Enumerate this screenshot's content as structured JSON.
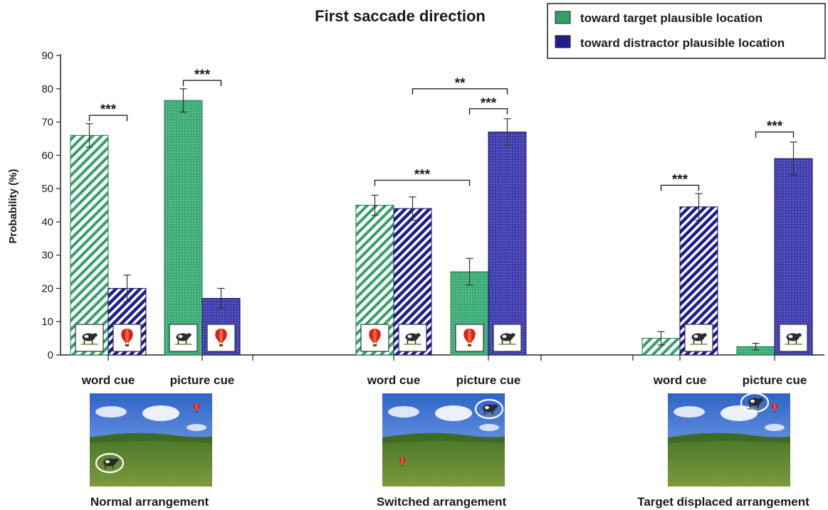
{
  "chart_data": {
    "type": "bar",
    "title": "First saccade direction",
    "ylabel": "Probability (%)",
    "xlabel": "",
    "ylim": [
      0,
      90
    ],
    "yticks": [
      0,
      10,
      20,
      30,
      40,
      50,
      60,
      70,
      80,
      90
    ],
    "grid": false,
    "legend_position": "top-right",
    "series": [
      {
        "name": "toward target plausible location",
        "color": "#33a06a"
      },
      {
        "name": "toward distractor plausible location",
        "color": "#1f1e8c"
      }
    ],
    "groups": [
      {
        "arrangement": "Normal arrangement",
        "cues": [
          {
            "label": "word cue",
            "values": [
              66,
              20
            ],
            "errors": [
              3.5,
              4
            ],
            "pattern": "striped",
            "icons": [
              "cow-icon",
              "balloon-icon"
            ]
          },
          {
            "label": "picture cue",
            "values": [
              76.5,
              17
            ],
            "errors": [
              3.5,
              3
            ],
            "pattern": "dotted",
            "icons": [
              "cow-icon",
              "balloon-icon"
            ]
          }
        ]
      },
      {
        "arrangement": "Switched arrangement",
        "cues": [
          {
            "label": "word cue",
            "values": [
              45,
              44
            ],
            "errors": [
              3,
              3.5
            ],
            "pattern": "striped",
            "icons": [
              "balloon-icon",
              "cow-icon"
            ]
          },
          {
            "label": "picture cue",
            "values": [
              25,
              67
            ],
            "errors": [
              4,
              4
            ],
            "pattern": "dotted",
            "icons": [
              "balloon-icon",
              "cow-icon"
            ]
          }
        ]
      },
      {
        "arrangement": "Target displaced arrangement",
        "cues": [
          {
            "label": "word cue",
            "values": [
              5,
              44.5
            ],
            "errors": [
              2,
              4
            ],
            "pattern": "striped",
            "icons": [
              null,
              "cow-icon"
            ]
          },
          {
            "label": "picture cue",
            "values": [
              2.5,
              59
            ],
            "errors": [
              1,
              5
            ],
            "pattern": "dotted",
            "icons": [
              null,
              "cow-icon"
            ]
          }
        ]
      }
    ],
    "significance": [
      {
        "label": "***",
        "group": 0,
        "from": [
          0,
          0
        ],
        "to": [
          0,
          1
        ],
        "y": 72
      },
      {
        "label": "***",
        "group": 0,
        "from": [
          1,
          0
        ],
        "to": [
          1,
          1
        ],
        "y": 82.5
      },
      {
        "label": "***",
        "group": 1,
        "from": [
          0,
          0
        ],
        "to": [
          1,
          0
        ],
        "y": 52.5
      },
      {
        "label": "**",
        "group": 1,
        "from": [
          0,
          1
        ],
        "to": [
          1,
          1
        ],
        "y": 80
      },
      {
        "label": "***",
        "group": 1,
        "from": [
          1,
          0
        ],
        "to": [
          1,
          1
        ],
        "y": 74
      },
      {
        "label": "***",
        "group": 2,
        "from": [
          0,
          0
        ],
        "to": [
          0,
          1
        ],
        "y": 51
      },
      {
        "label": "***",
        "group": 2,
        "from": [
          1,
          0
        ],
        "to": [
          1,
          1
        ],
        "y": 67
      }
    ]
  }
}
